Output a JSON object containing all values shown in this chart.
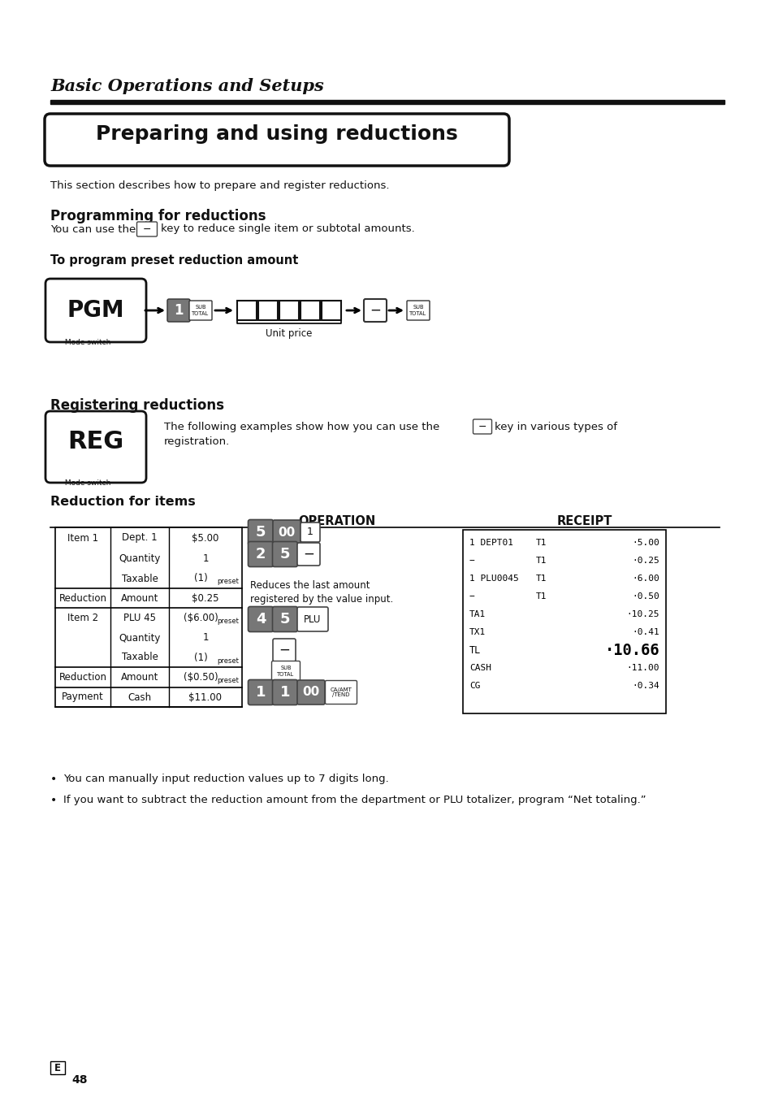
{
  "page_title": "Basic Operations and Setups",
  "section_title": "Preparing and using reductions",
  "intro_text": "This section describes how to prepare and register reductions.",
  "prog_heading": "Programming for reductions",
  "subheading1": "To program preset reduction amount",
  "reg_heading": "Registering reductions",
  "reg_desc": "The following examples show how you can use the",
  "reg_desc2": "key in various types of",
  "reg_desc3": "registration.",
  "reduct_heading": "Reduction for items",
  "op_header": "OPERATION",
  "rec_header": "RECEIPT",
  "bullet1": "You can manually input reduction values up to 7 digits long.",
  "bullet2": "If you want to subtract the reduction amount from the department or PLU totalizer, program “Net totaling.”",
  "page_label": "E",
  "page_num": "48",
  "bg_color": "#ffffff"
}
